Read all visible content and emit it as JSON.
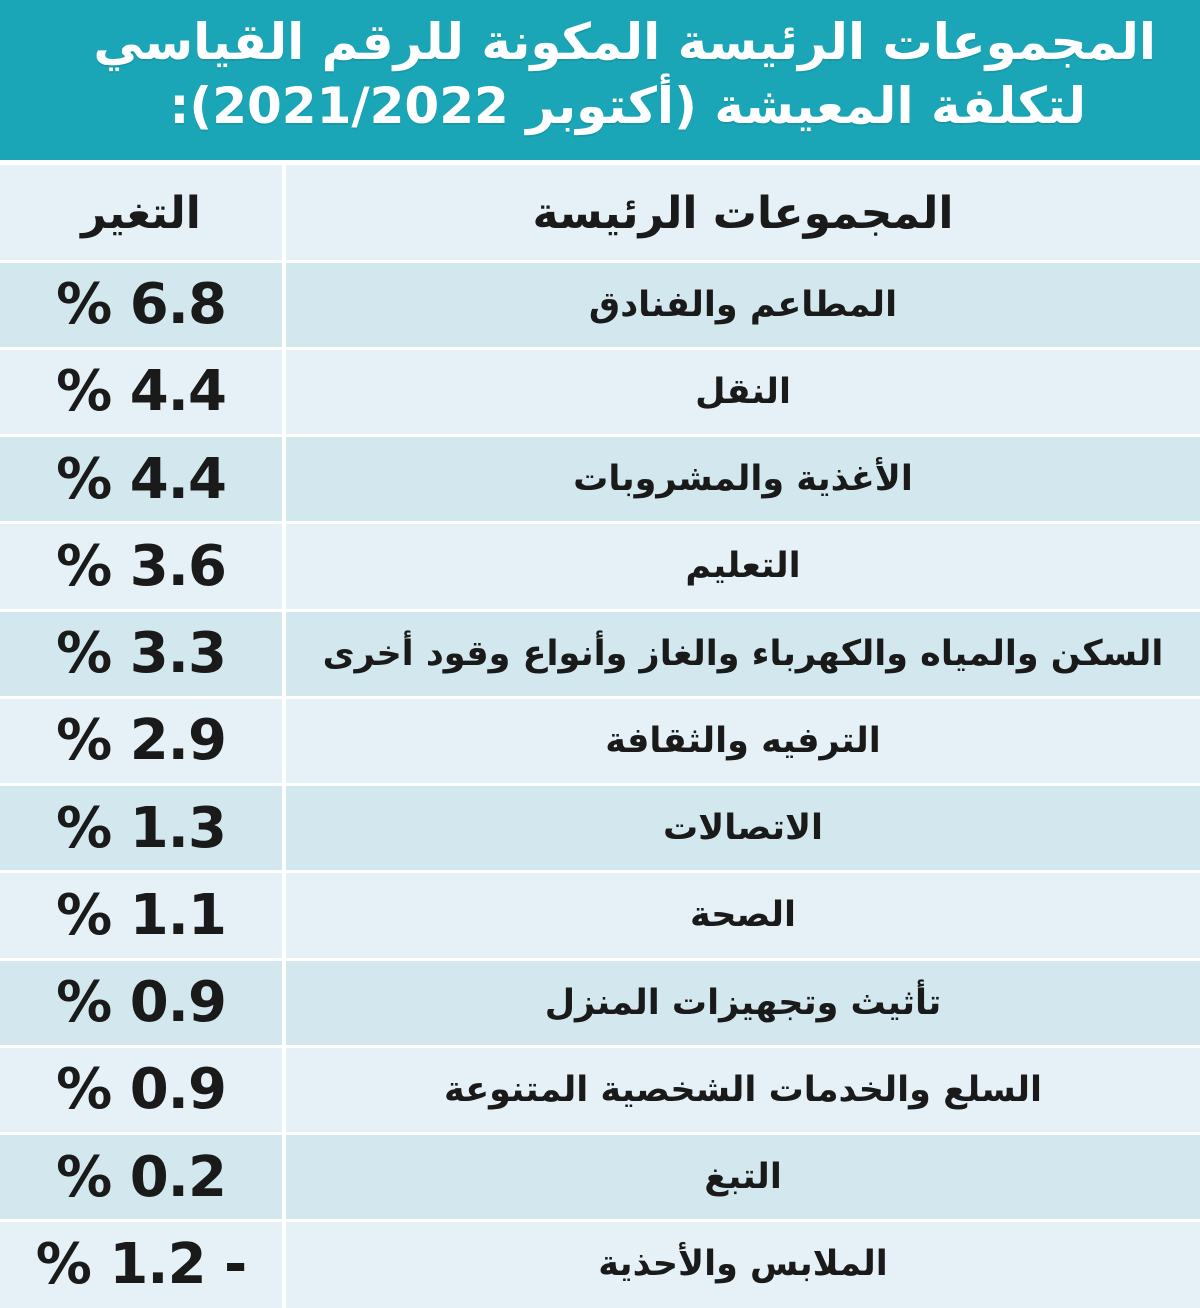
{
  "title": {
    "line1": "المجموعات الرئيسة المكونة للرقم القياسي",
    "line2": "لتكلفة المعيشة (أكتوبر 2021/2022):"
  },
  "colors": {
    "title_band": "#1aa6b7",
    "row_dark": "#d3e7ee",
    "row_light": "#e5f1f6",
    "header_bg": "#e5f1f6",
    "text": "#1a1a1a"
  },
  "chart_data": {
    "type": "table",
    "title": "المجموعات الرئيسة المكونة للرقم القياسي لتكلفة المعيشة (أكتوبر 2021/2022):",
    "columns": [
      "المجموعات الرئيسة",
      "التغير"
    ],
    "rows": [
      {
        "group": "المطاعم والفنادق",
        "change": "% 6.8",
        "value": 6.8
      },
      {
        "group": "النقل",
        "change": "% 4.4",
        "value": 4.4
      },
      {
        "group": "الأغذية والمشروبات",
        "change": "% 4.4",
        "value": 4.4
      },
      {
        "group": "التعليم",
        "change": "% 3.6",
        "value": 3.6
      },
      {
        "group": "السكن والمياه والكهرباء والغاز وأنواع وقود أخرى",
        "change": "% 3.3",
        "value": 3.3
      },
      {
        "group": "الترفيه والثقافة",
        "change": "% 2.9",
        "value": 2.9
      },
      {
        "group": "الاتصالات",
        "change": "% 1.3",
        "value": 1.3
      },
      {
        "group": "الصحة",
        "change": "% 1.1",
        "value": 1.1
      },
      {
        "group": "تأثيث وتجهيزات المنزل",
        "change": "% 0.9",
        "value": 0.9
      },
      {
        "group": "السلع والخدمات الشخصية  المتنوعة",
        "change": "% 0.9",
        "value": 0.9
      },
      {
        "group": "التبغ",
        "change": "% 0.2",
        "value": 0.2
      },
      {
        "group": "الملابس والأحذية",
        "change": "% 1.2 -",
        "value": -1.2
      }
    ]
  }
}
